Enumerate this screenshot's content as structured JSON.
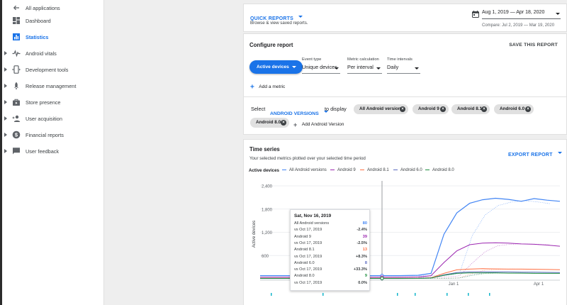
{
  "sidebar": {
    "back_label": "All applications",
    "items": [
      {
        "label": "Dashboard"
      },
      {
        "label": "Statistics"
      },
      {
        "label": "Android vitals"
      },
      {
        "label": "Development tools"
      },
      {
        "label": "Release management"
      },
      {
        "label": "Store presence"
      },
      {
        "label": "User acquisition"
      },
      {
        "label": "Financial reports"
      },
      {
        "label": "User feedback"
      }
    ]
  },
  "header": {
    "quick_reports": "QUICK REPORTS",
    "quick_reports_sub": "Browse & view saved reports.",
    "date_range": "Aug 1, 2019 — Apr 18, 2020",
    "compare": "Compare: Jul 2, 2019 — Mar 19, 2020"
  },
  "configure": {
    "title": "Configure report",
    "save": "SAVE THIS REPORT",
    "metric_button": "Active devices",
    "event_type_label": "Event type",
    "event_type_value": "Unique devices",
    "calc_label": "Metric calculation",
    "calc_value": "Per interval",
    "interval_label": "Time intervals",
    "interval_value": "Daily",
    "add_metric": "Add a metric",
    "select_label": "Select",
    "dimension": "ANDROID VERSIONS",
    "to_display": "to display",
    "chips": [
      "All Android versions",
      "Android 9",
      "Android 8.1",
      "Android 6.0",
      "Android 8.0"
    ],
    "add_version": "Add Android Version"
  },
  "timeseries": {
    "title": "Time series",
    "subtitle": "Your selected metrics plotted over your selected time period",
    "export": "EXPORT REPORT",
    "legend_title": "Active devices",
    "ylabel": "Active devices",
    "y_ticks": [
      "2,400",
      "1,800",
      "1,200",
      "600"
    ],
    "x_ticks": [
      "Jan 1",
      "Apr 1"
    ]
  },
  "tooltip": {
    "date": "Sat, Nov 16, 2019",
    "rows": [
      {
        "label": "All Android versions",
        "value": "80",
        "color": "#4285f4"
      },
      {
        "label": "vs Oct 17, 2019",
        "value": "-2.4%",
        "color": "#3c4043"
      },
      {
        "label": "Android 9",
        "value": "39",
        "color": "#9c27b0"
      },
      {
        "label": "vs Oct 17, 2019",
        "value": "-2.5%",
        "color": "#3c4043"
      },
      {
        "label": "Android 8.1",
        "value": "13",
        "color": "#ff7043"
      },
      {
        "label": "vs Oct 17, 2019",
        "value": "+8.3%",
        "color": "#3c4043"
      },
      {
        "label": "Android 6.0",
        "value": "8",
        "color": "#5c6bc0"
      },
      {
        "label": "vs Oct 17, 2019",
        "value": "+33.3%",
        "color": "#3c4043"
      },
      {
        "label": "Android 8.0",
        "value": "9",
        "color": "#1e8e3e"
      },
      {
        "label": "vs Oct 17, 2019",
        "value": "0.0%",
        "color": "#3c4043"
      }
    ]
  },
  "chart_data": {
    "type": "line",
    "ylabel": "Active devices",
    "ylim": [
      0,
      2400
    ],
    "x_tick_labels": [
      "Jan 1",
      "Apr 1"
    ],
    "y_tick_labels": [
      "2,400",
      "1,800",
      "1,200",
      "600"
    ],
    "legend_placement": "top",
    "grid": true,
    "series": [
      {
        "name": "All Android versions",
        "color": "#4285f4",
        "values": [
          80,
          80,
          80,
          80,
          80,
          80,
          80,
          80,
          90,
          140,
          1150,
          1700,
          1950,
          2040,
          2080,
          2050,
          2000,
          2070,
          2030,
          2000
        ]
      },
      {
        "name": "Android 9",
        "color": "#9c27b0",
        "values": [
          39,
          39,
          39,
          39,
          39,
          39,
          39,
          39,
          45,
          80,
          420,
          720,
          880,
          920,
          930,
          920,
          900,
          890,
          870,
          840
        ]
      },
      {
        "name": "Android 8.1",
        "color": "#ff7043",
        "values": [
          13,
          13,
          13,
          13,
          13,
          13,
          13,
          13,
          15,
          25,
          140,
          230,
          250,
          260,
          255,
          250,
          250,
          245,
          240,
          235
        ]
      },
      {
        "name": "Android 6.0",
        "color": "#5c6bc0",
        "values": [
          8,
          8,
          8,
          8,
          8,
          8,
          8,
          8,
          10,
          18,
          100,
          160,
          175,
          180,
          175,
          175,
          170,
          170,
          165,
          160
        ]
      },
      {
        "name": "Android 8.0",
        "color": "#1e8e3e",
        "values": [
          9,
          9,
          9,
          9,
          9,
          9,
          9,
          9,
          11,
          20,
          90,
          140,
          150,
          150,
          150,
          145,
          145,
          140,
          140,
          140
        ]
      }
    ]
  }
}
